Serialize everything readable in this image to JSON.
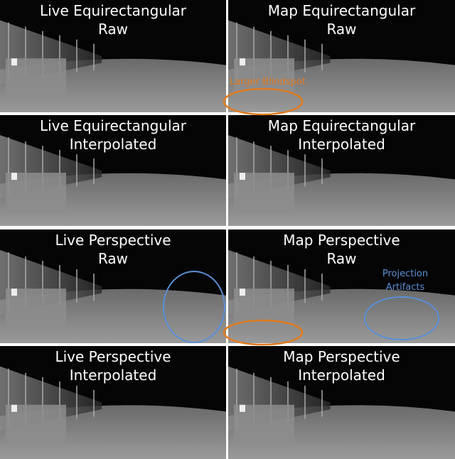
{
  "panels": [
    {
      "title": [
        "Live Equirectangular",
        "Raw"
      ]
    },
    {
      "title": [
        "Map Equirectangular",
        "Raw"
      ]
    },
    {
      "title": [
        "Live Equirectangular",
        "Interpolated"
      ]
    },
    {
      "title": [
        "Map Equirectangular",
        "Interpolated"
      ]
    },
    {
      "title": [
        "Live Perspective",
        "Raw"
      ]
    },
    {
      "title": [
        "Map Perspective",
        "Raw"
      ]
    },
    {
      "title": [
        "Live Perspective",
        "Interpolated"
      ]
    },
    {
      "title": [
        "Map Perspective",
        "Interpolated"
      ]
    }
  ],
  "annotations": {
    "blindspot": "Larger Blindspot",
    "artifacts": [
      "Projection",
      "Artifacts"
    ]
  }
}
